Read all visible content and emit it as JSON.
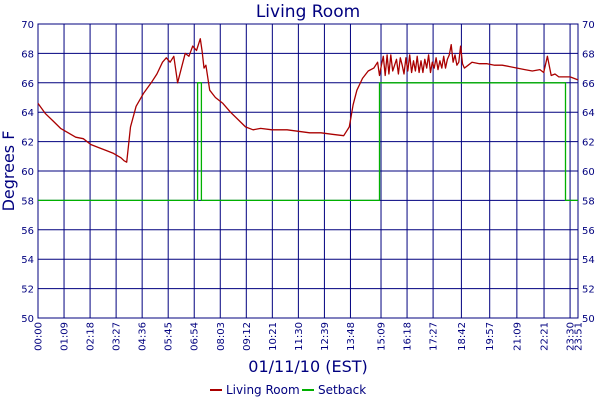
{
  "chart_data": {
    "type": "line",
    "title": "Living Room",
    "xlabel": "01/11/10 (EST)",
    "ylabel": "Degrees F",
    "ylim": [
      50,
      70
    ],
    "y_ticks": [
      50,
      52,
      54,
      56,
      58,
      60,
      62,
      64,
      66,
      68,
      70
    ],
    "x_range_minutes": [
      0,
      1431
    ],
    "x_ticks": [
      "00:00",
      "01:09",
      "02:18",
      "03:27",
      "04:36",
      "05:45",
      "06:54",
      "08:03",
      "09:12",
      "10:21",
      "11:30",
      "12:39",
      "13:48",
      "15:09",
      "16:18",
      "17:27",
      "18:42",
      "19:57",
      "21:09",
      "22:21",
      "23:30",
      "23:51"
    ],
    "grid": true,
    "legend_position": "bottom",
    "colors": {
      "axis_text": "#00007f",
      "grid": "#00007f",
      "living_room": "#aa0000",
      "setback": "#00b000"
    },
    "series": [
      {
        "name": "Living Room",
        "x": [
          "00:00",
          "00:20",
          "00:40",
          "01:00",
          "01:20",
          "01:40",
          "02:00",
          "02:20",
          "02:40",
          "03:00",
          "03:20",
          "03:40",
          "03:48",
          "03:55",
          "04:05",
          "04:20",
          "04:40",
          "05:00",
          "05:15",
          "05:30",
          "05:40",
          "05:50",
          "06:00",
          "06:10",
          "06:20",
          "06:30",
          "06:40",
          "06:50",
          "07:00",
          "07:10",
          "07:15",
          "07:20",
          "07:25",
          "07:35",
          "07:50",
          "08:10",
          "08:30",
          "08:50",
          "09:10",
          "09:30",
          "09:50",
          "10:20",
          "11:00",
          "11:30",
          "12:00",
          "12:30",
          "13:00",
          "13:30",
          "13:45",
          "13:55",
          "14:05",
          "14:20",
          "14:35",
          "14:50",
          "15:00",
          "15:05",
          "15:10",
          "15:15",
          "15:20",
          "15:25",
          "15:30",
          "15:35",
          "15:40",
          "15:45",
          "15:50",
          "15:55",
          "16:00",
          "16:05",
          "16:10",
          "16:15",
          "16:20",
          "16:25",
          "16:30",
          "16:35",
          "16:40",
          "16:45",
          "16:50",
          "16:55",
          "17:00",
          "17:05",
          "17:10",
          "17:15",
          "17:20",
          "17:25",
          "17:30",
          "17:35",
          "17:40",
          "17:45",
          "17:50",
          "17:55",
          "18:00",
          "18:05",
          "18:10",
          "18:15",
          "18:20",
          "18:25",
          "18:30",
          "18:35",
          "18:40",
          "18:45",
          "18:50",
          "19:00",
          "19:10",
          "19:30",
          "19:50",
          "20:10",
          "20:30",
          "20:50",
          "21:10",
          "21:30",
          "21:50",
          "22:10",
          "22:20",
          "22:30",
          "22:40",
          "22:50",
          "23:00",
          "23:10",
          "23:30",
          "23:51"
        ],
        "values": [
          64.6,
          63.9,
          63.4,
          62.9,
          62.6,
          62.3,
          62.2,
          61.8,
          61.6,
          61.4,
          61.2,
          60.9,
          60.7,
          60.6,
          63.0,
          64.4,
          65.3,
          66.0,
          66.6,
          67.4,
          67.7,
          67.4,
          67.8,
          66.0,
          67.0,
          68.0,
          67.8,
          68.5,
          68.2,
          69.0,
          68.1,
          67.0,
          67.2,
          65.5,
          65.0,
          64.6,
          64.0,
          63.5,
          63.0,
          62.8,
          62.9,
          62.8,
          62.8,
          62.7,
          62.6,
          62.6,
          62.5,
          62.4,
          63.0,
          64.5,
          65.5,
          66.3,
          66.8,
          67.0,
          67.4,
          66.5,
          67.2,
          67.8,
          66.5,
          67.9,
          66.6,
          67.9,
          66.8,
          67.2,
          67.6,
          66.6,
          67.7,
          67.2,
          66.6,
          67.7,
          66.8,
          67.9,
          66.7,
          67.5,
          66.8,
          67.8,
          66.7,
          67.5,
          66.7,
          67.6,
          67.0,
          67.9,
          66.7,
          67.4,
          67.0,
          67.7,
          66.9,
          67.5,
          67.0,
          67.8,
          67.0,
          67.6,
          67.9,
          68.6,
          67.4,
          67.9,
          67.2,
          67.4,
          68.5,
          67.3,
          67.0,
          67.2,
          67.4,
          67.3,
          67.3,
          67.2,
          67.2,
          67.1,
          67.0,
          66.9,
          66.8,
          66.9,
          66.7,
          67.8,
          66.5,
          66.6,
          66.4,
          66.4,
          66.4,
          66.2
        ]
      },
      {
        "name": "Setback",
        "x": [
          "00:00",
          "07:03",
          "07:03",
          "07:13",
          "07:13",
          "15:05",
          "15:05",
          "23:18",
          "23:18",
          "23:51"
        ],
        "values": [
          58,
          58,
          66,
          66,
          58,
          58,
          66,
          66,
          58,
          58
        ]
      }
    ]
  }
}
